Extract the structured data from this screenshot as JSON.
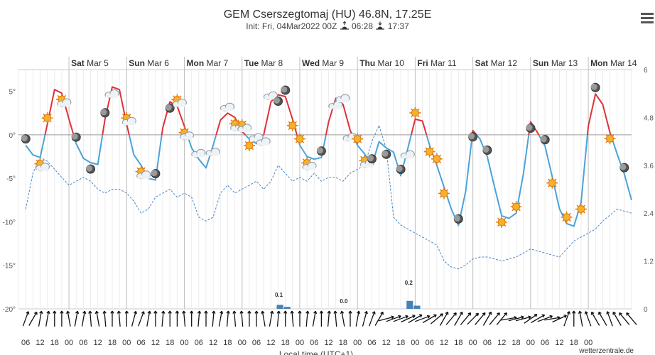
{
  "header": {
    "title": "GEM Cserszegtomaj (HU) 46.8N, 17.25E",
    "init": "Init: Fri, 04Mar2022 00Z",
    "sunrise": "06:28",
    "sunset": "17:37",
    "sunrise_icon": "sunrise-icon",
    "sunset_icon": "sunset-icon"
  },
  "menu": {
    "icon": "hamburger-menu-icon"
  },
  "credit": "wetterzentrale.de",
  "chart_data": {
    "type": "line",
    "title": "GEM Cserszegtomaj (HU) 46.8N, 17.25E",
    "xlabel": "Local time (UTC+1)",
    "hours_start": 3,
    "hours_step": 3,
    "days": [
      {
        "weekday": "Sat",
        "date": "Mar 5"
      },
      {
        "weekday": "Sun",
        "date": "Mar 6"
      },
      {
        "weekday": "Mon",
        "date": "Mar 7"
      },
      {
        "weekday": "Tue",
        "date": "Mar 8"
      },
      {
        "weekday": "Wed",
        "date": "Mar 9"
      },
      {
        "weekday": "Thu",
        "date": "Mar 10"
      },
      {
        "weekday": "Fri",
        "date": "Mar 11"
      },
      {
        "weekday": "Sat",
        "date": "Mar 12"
      },
      {
        "weekday": "Sun",
        "date": "Mar 13"
      },
      {
        "weekday": "Mon",
        "date": "Mar 14"
      }
    ],
    "x_ticks": [
      "06",
      "12",
      "18",
      "00",
      "06",
      "12",
      "18",
      "00",
      "06",
      "12",
      "18",
      "00",
      "06",
      "12",
      "18",
      "00",
      "06",
      "12",
      "18",
      "00",
      "06",
      "12",
      "18",
      "00",
      "06",
      "12",
      "18",
      "00",
      "06",
      "12",
      "18",
      "00",
      "06",
      "12",
      "18",
      "00",
      "06",
      "12",
      "18",
      "00"
    ],
    "left_axis": {
      "ylim": [
        -20,
        7.5
      ],
      "ticks": [
        "5°",
        "0°",
        "-5°",
        "-10°",
        "-15°",
        "-20°"
      ],
      "tick_values": [
        5,
        0,
        -5,
        -10,
        -15,
        -20
      ]
    },
    "right_axis": {
      "ylim": [
        0,
        6
      ],
      "ticks": [
        "6",
        "4.8",
        "3.6",
        "2.4",
        "1.2",
        "0"
      ],
      "tick_values": [
        6,
        4.8,
        3.6,
        2.4,
        1.2,
        0
      ]
    },
    "zero_line": 0,
    "series": [
      {
        "name": "Temperature",
        "unit": "°C",
        "color_warm": "#e0303a",
        "color_cold": "#4aa3d8",
        "values": [
          -1.2,
          -2.3,
          -2.6,
          1.2,
          5.2,
          4.8,
          1.8,
          -1.0,
          -2.7,
          -3.2,
          -3.4,
          1.8,
          5.5,
          5.2,
          1.2,
          -2.3,
          -3.5,
          -5.0,
          -5.2,
          0.8,
          3.8,
          3.3,
          1.0,
          -1.5,
          -2.8,
          -3.8,
          -1.2,
          1.7,
          2.5,
          2.0,
          0.4,
          -0.5,
          -1.0,
          0.0,
          3.8,
          4.6,
          4.4,
          1.8,
          -1.2,
          -2.5,
          -2.8,
          -2.6,
          1.5,
          4.2,
          3.5,
          0.5,
          -1.2,
          -2.2,
          -3.5,
          -0.8,
          -1.5,
          -2.0,
          -4.7,
          -1.5,
          1.8,
          1.6,
          -1.2,
          -3.5,
          -6.0,
          -8.5,
          -10.4,
          -6.5,
          0.5,
          -0.5,
          -2.5,
          -6.0,
          -9.3,
          -9.6,
          -9.0,
          -4.5,
          1.5,
          0.2,
          -1.3,
          -4.8,
          -8.5,
          -10.2,
          -10.5,
          -7.8,
          1.0,
          4.7,
          3.5,
          0.3,
          -2.2,
          -4.5,
          -7.5
        ]
      },
      {
        "name": "Precipitable water / secondary (dashed)",
        "axis": "right",
        "color": "#4a86c8",
        "values": [
          2.5,
          3.4,
          3.8,
          3.7,
          3.5,
          3.3,
          3.1,
          3.2,
          3.3,
          3.2,
          3.0,
          2.9,
          3.0,
          3.0,
          2.9,
          2.7,
          2.4,
          2.5,
          2.8,
          2.9,
          3.0,
          2.8,
          2.9,
          2.8,
          2.3,
          2.2,
          2.3,
          2.9,
          3.1,
          2.9,
          3.0,
          3.1,
          3.2,
          3.0,
          3.2,
          3.6,
          3.4,
          3.2,
          3.3,
          3.2,
          3.4,
          3.2,
          3.3,
          3.3,
          3.2,
          3.4,
          3.5,
          3.6,
          4.2,
          4.6,
          4.0,
          2.3,
          2.1,
          2.0,
          1.9,
          1.8,
          1.7,
          1.6,
          1.2,
          1.05,
          1.0,
          1.1,
          1.25,
          1.3,
          1.3,
          1.25,
          1.2,
          1.25,
          1.3,
          1.4,
          1.5,
          1.45,
          1.4,
          1.35,
          1.3,
          1.5,
          1.7,
          1.8,
          1.9,
          2.0,
          2.2,
          2.35,
          2.5,
          2.45,
          2.4
        ]
      }
    ],
    "precipitation": {
      "name": "Precipitation",
      "unit": "mm",
      "color": "#4682b4",
      "labels": [
        {
          "hour": 108,
          "label": "0.1"
        },
        {
          "hour": 135,
          "label": "0.0"
        },
        {
          "hour": 162,
          "label": "0.2"
        }
      ],
      "bars": [
        {
          "hour": 108,
          "value": 0.1
        },
        {
          "hour": 111,
          "value": 0.05
        },
        {
          "hour": 162,
          "value": 0.2
        },
        {
          "hour": 165,
          "value": 0.08
        }
      ]
    },
    "wind_barbs": {
      "name": "Wind direction",
      "directions": [
        200,
        210,
        190,
        190,
        180,
        180,
        170,
        190,
        190,
        175,
        170,
        175,
        180,
        175,
        180,
        195,
        200,
        190,
        180,
        185,
        180,
        180,
        175,
        180,
        185,
        180,
        185,
        190,
        185,
        175,
        175,
        180,
        180,
        170,
        190,
        185,
        180,
        175,
        180,
        185,
        190,
        180,
        185,
        175,
        170,
        180,
        190,
        195,
        200,
        210,
        255,
        250,
        250,
        245,
        240,
        250,
        240,
        230,
        210,
        220,
        210,
        220,
        225,
        220,
        210,
        220,
        220,
        260,
        255,
        255,
        235,
        240,
        250,
        260,
        245,
        200,
        180,
        170,
        160,
        150,
        150,
        160,
        150,
        140,
        140
      ]
    },
    "weather_symbols": [
      {
        "hour": 3,
        "icon": "moon-icon"
      },
      {
        "hour": 9,
        "icon": "sun-cloud-icon"
      },
      {
        "hour": 12,
        "icon": "sun-icon"
      },
      {
        "hour": 18,
        "icon": "sun-cloud-icon"
      },
      {
        "hour": 24,
        "icon": "moon-icon"
      },
      {
        "hour": 30,
        "icon": "moon-icon"
      },
      {
        "hour": 36,
        "icon": "moon-icon"
      },
      {
        "hour": 39,
        "icon": "cloud-icon"
      },
      {
        "hour": 45,
        "icon": "sun-cloud-icon"
      },
      {
        "hour": 51,
        "icon": "sun-cloud-icon"
      },
      {
        "hour": 57,
        "icon": "moon-icon"
      },
      {
        "hour": 63,
        "icon": "moon-icon"
      },
      {
        "hour": 66,
        "icon": "sun-cloud-icon"
      },
      {
        "hour": 69,
        "icon": "sun-cloud-icon"
      },
      {
        "hour": 75,
        "icon": "cloud-icon"
      },
      {
        "hour": 81,
        "icon": "cloud-icon"
      },
      {
        "hour": 87,
        "icon": "cloud-icon"
      },
      {
        "hour": 90,
        "icon": "sun-cloud-icon"
      },
      {
        "hour": 93,
        "icon": "sun-cloud-icon"
      },
      {
        "hour": 96,
        "icon": "sun-icon"
      },
      {
        "hour": 99,
        "icon": "cloud-icon"
      },
      {
        "hour": 102,
        "icon": "cloud-icon"
      },
      {
        "hour": 105,
        "icon": "cloud-icon"
      },
      {
        "hour": 108,
        "icon": "moon-icon"
      },
      {
        "hour": 111,
        "icon": "moon-icon"
      },
      {
        "hour": 114,
        "icon": "sun-icon"
      },
      {
        "hour": 117,
        "icon": "sun-icon"
      },
      {
        "hour": 120,
        "icon": "sun-cloud-icon"
      },
      {
        "hour": 126,
        "icon": "moon-icon"
      },
      {
        "hour": 132,
        "icon": "cloud-icon"
      },
      {
        "hour": 135,
        "icon": "cloud-icon"
      },
      {
        "hour": 138,
        "icon": "cloud-icon"
      },
      {
        "hour": 141,
        "icon": "sun-icon"
      },
      {
        "hour": 144,
        "icon": "sun-cloud-icon"
      },
      {
        "hour": 147,
        "icon": "moon-icon"
      },
      {
        "hour": 153,
        "icon": "moon-icon"
      },
      {
        "hour": 159,
        "icon": "moon-icon"
      },
      {
        "hour": 162,
        "icon": "cloud-icon"
      },
      {
        "hour": 165,
        "icon": "sun-icon"
      },
      {
        "hour": 171,
        "icon": "sun-icon"
      },
      {
        "hour": 174,
        "icon": "sun-icon"
      },
      {
        "hour": 177,
        "icon": "sun-icon"
      },
      {
        "hour": 183,
        "icon": "moon-icon"
      },
      {
        "hour": 189,
        "icon": "moon-icon"
      },
      {
        "hour": 195,
        "icon": "moon-icon"
      },
      {
        "hour": 201,
        "icon": "sun-icon"
      },
      {
        "hour": 207,
        "icon": "sun-icon"
      },
      {
        "hour": 213,
        "icon": "moon-icon"
      },
      {
        "hour": 219,
        "icon": "moon-icon"
      },
      {
        "hour": 222,
        "icon": "sun-icon"
      },
      {
        "hour": 228,
        "icon": "sun-icon"
      },
      {
        "hour": 234,
        "icon": "sun-icon"
      },
      {
        "hour": 240,
        "icon": "moon-icon"
      },
      {
        "hour": 246,
        "icon": "sun-icon"
      },
      {
        "hour": 252,
        "icon": "moon-icon"
      }
    ],
    "legend": "none",
    "grid": true
  }
}
